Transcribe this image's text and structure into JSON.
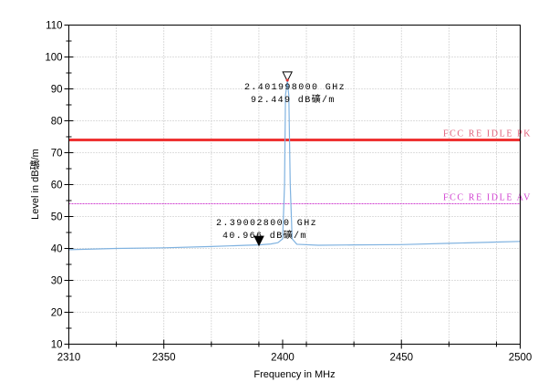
{
  "chart_data": {
    "type": "line",
    "title": "",
    "xlabel": "Frequency in MHz",
    "ylabel": "Level in dB礦/m",
    "xlim": [
      2310,
      2500
    ],
    "ylim": [
      10,
      110
    ],
    "x_ticks": [
      2310,
      2350,
      2400,
      2450,
      2500
    ],
    "y_ticks": [
      10,
      20,
      30,
      40,
      50,
      60,
      70,
      80,
      90,
      100,
      110
    ],
    "grid": true,
    "series": [
      {
        "color": "#7fb2e0",
        "x": [
          2310,
          2330,
          2350,
          2370,
          2385,
          2390,
          2395,
          2398,
          2400,
          2400.8,
          2401.2,
          2402,
          2402.6,
          2403.2,
          2404,
          2406,
          2415,
          2430,
          2450,
          2470,
          2490,
          2500
        ],
        "y": [
          39.6,
          40.0,
          40.2,
          40.6,
          41.0,
          41.1,
          41.4,
          41.8,
          43,
          60,
          88,
          92.4,
          88,
          60,
          43,
          41.3,
          41.0,
          41.1,
          41.2,
          41.6,
          42.0,
          42.2
        ]
      }
    ],
    "limit_lines": [
      {
        "name": "FCC RE IDLE PK",
        "y": 74.0,
        "color": "#ee3333",
        "label_color": "#e0607a"
      },
      {
        "name": "FCC RE IDLE AV",
        "y": 54.0,
        "color": "#d040d0",
        "label_color": "#d040d0"
      }
    ],
    "markers": [
      {
        "x": 2401.998,
        "y": 92.449,
        "style": "hollow",
        "freq_label": "2.401998000 GHz",
        "level_label": "92.449 dB礦/m"
      },
      {
        "x": 2390.028,
        "y": 40.966,
        "style": "filled",
        "freq_label": "2.390028000 GHz",
        "level_label": "40.966 dB礦/m"
      }
    ]
  }
}
